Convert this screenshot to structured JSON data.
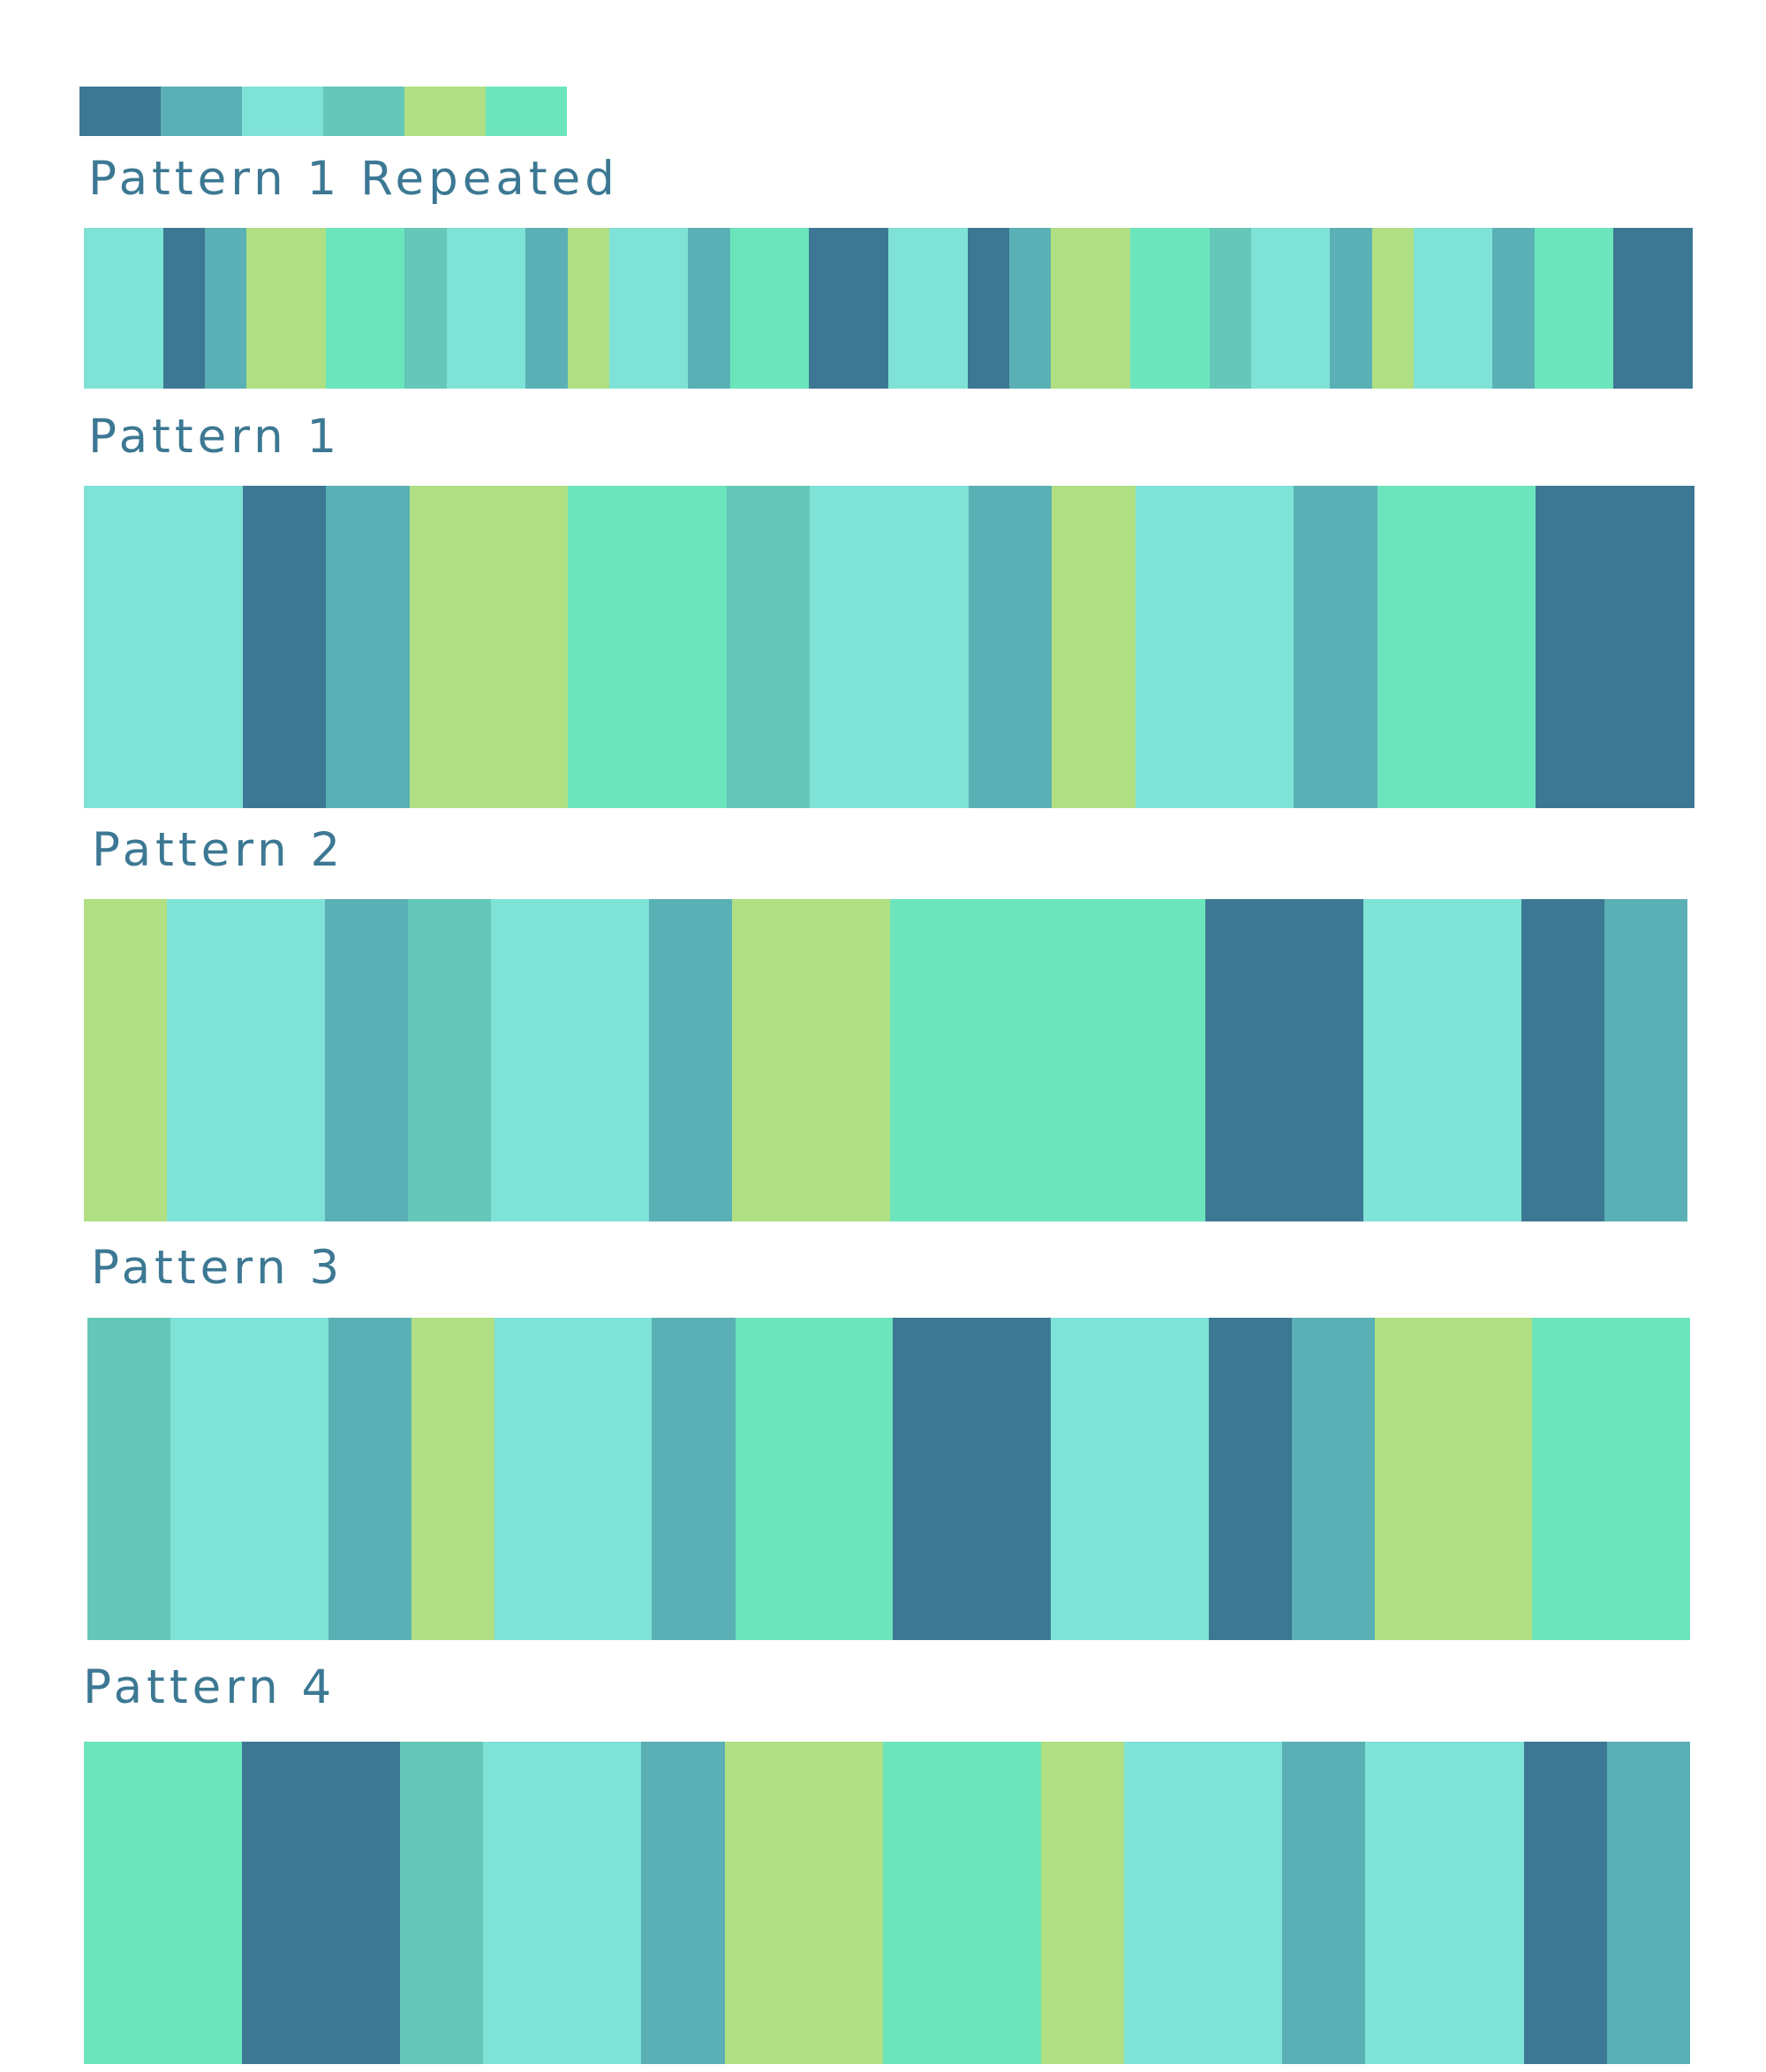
{
  "palette": {
    "colors": [
      "#3c7893",
      "#5ab0b5",
      "#7fe2d6",
      "#64c7b7",
      "#b0e083",
      "#6ce5bd"
    ]
  },
  "patterns": [
    {
      "title": "Pattern 1 Repeated",
      "stripes": [
        {
          "color": "#7fe2d6",
          "weight": 1.9
        },
        {
          "color": "#3c7893",
          "weight": 1.0
        },
        {
          "color": "#5ab0b5",
          "weight": 1.0
        },
        {
          "color": "#b0e083",
          "weight": 1.9
        },
        {
          "color": "#6ce5bd",
          "weight": 1.9
        },
        {
          "color": "#64c7b7",
          "weight": 1.0
        },
        {
          "color": "#7fe2d6",
          "weight": 1.9
        },
        {
          "color": "#5ab0b5",
          "weight": 1.0
        },
        {
          "color": "#b0e083",
          "weight": 1.0
        },
        {
          "color": "#7fe2d6",
          "weight": 1.9
        },
        {
          "color": "#5ab0b5",
          "weight": 1.0
        },
        {
          "color": "#6ce5bd",
          "weight": 1.9
        },
        {
          "color": "#3c7893",
          "weight": 1.9
        },
        {
          "color": "#7fe2d6",
          "weight": 1.9
        },
        {
          "color": "#3c7893",
          "weight": 1.0
        },
        {
          "color": "#5ab0b5",
          "weight": 1.0
        },
        {
          "color": "#b0e083",
          "weight": 1.9
        },
        {
          "color": "#6ce5bd",
          "weight": 1.9
        },
        {
          "color": "#64c7b7",
          "weight": 1.0
        },
        {
          "color": "#7fe2d6",
          "weight": 1.9
        },
        {
          "color": "#5ab0b5",
          "weight": 1.0
        },
        {
          "color": "#b0e083",
          "weight": 1.0
        },
        {
          "color": "#7fe2d6",
          "weight": 1.9
        },
        {
          "color": "#5ab0b5",
          "weight": 1.0
        },
        {
          "color": "#6ce5bd",
          "weight": 1.9
        },
        {
          "color": "#3c7893",
          "weight": 1.9
        }
      ]
    },
    {
      "title": "Pattern 1",
      "stripes": [
        {
          "color": "#7fe2d6",
          "weight": 1.9
        },
        {
          "color": "#3c7893",
          "weight": 1.0
        },
        {
          "color": "#5ab0b5",
          "weight": 1.0
        },
        {
          "color": "#b0e083",
          "weight": 1.9
        },
        {
          "color": "#6ce5bd",
          "weight": 1.9
        },
        {
          "color": "#64c7b7",
          "weight": 1.0
        },
        {
          "color": "#7fe2d6",
          "weight": 1.9
        },
        {
          "color": "#5ab0b5",
          "weight": 1.0
        },
        {
          "color": "#b0e083",
          "weight": 1.0
        },
        {
          "color": "#7fe2d6",
          "weight": 1.9
        },
        {
          "color": "#5ab0b5",
          "weight": 1.0
        },
        {
          "color": "#6ce5bd",
          "weight": 1.9
        },
        {
          "color": "#3c7893",
          "weight": 1.9
        }
      ]
    },
    {
      "title": "Pattern 2",
      "stripes": [
        {
          "color": "#b0e083",
          "weight": 1.0
        },
        {
          "color": "#7fe2d6",
          "weight": 1.9
        },
        {
          "color": "#5ab0b5",
          "weight": 1.0
        },
        {
          "color": "#64c7b7",
          "weight": 1.0
        },
        {
          "color": "#7fe2d6",
          "weight": 1.9
        },
        {
          "color": "#5ab0b5",
          "weight": 1.0
        },
        {
          "color": "#b0e083",
          "weight": 1.9
        },
        {
          "color": "#6ce5bd",
          "weight": 3.8
        },
        {
          "color": "#3c7893",
          "weight": 1.9
        },
        {
          "color": "#7fe2d6",
          "weight": 1.9
        },
        {
          "color": "#3c7893",
          "weight": 1.0
        },
        {
          "color": "#5ab0b5",
          "weight": 1.0
        }
      ]
    },
    {
      "title": "Pattern 3",
      "stripes": [
        {
          "color": "#64c7b7",
          "weight": 1.0
        },
        {
          "color": "#7fe2d6",
          "weight": 1.9
        },
        {
          "color": "#5ab0b5",
          "weight": 1.0
        },
        {
          "color": "#b0e083",
          "weight": 1.0
        },
        {
          "color": "#7fe2d6",
          "weight": 1.9
        },
        {
          "color": "#5ab0b5",
          "weight": 1.0
        },
        {
          "color": "#6ce5bd",
          "weight": 1.9
        },
        {
          "color": "#3c7893",
          "weight": 1.9
        },
        {
          "color": "#7fe2d6",
          "weight": 1.9
        },
        {
          "color": "#3c7893",
          "weight": 1.0
        },
        {
          "color": "#5ab0b5",
          "weight": 1.0
        },
        {
          "color": "#b0e083",
          "weight": 1.9
        },
        {
          "color": "#6ce5bd",
          "weight": 1.9
        }
      ]
    },
    {
      "title": "Pattern 4",
      "stripes": [
        {
          "color": "#6ce5bd",
          "weight": 1.9
        },
        {
          "color": "#3c7893",
          "weight": 1.9
        },
        {
          "color": "#64c7b7",
          "weight": 1.0
        },
        {
          "color": "#7fe2d6",
          "weight": 1.9
        },
        {
          "color": "#5ab0b5",
          "weight": 1.0
        },
        {
          "color": "#b0e083",
          "weight": 1.9
        },
        {
          "color": "#6ce5bd",
          "weight": 1.9
        },
        {
          "color": "#b0e083",
          "weight": 1.0
        },
        {
          "color": "#7fe2d6",
          "weight": 1.9
        },
        {
          "color": "#5ab0b5",
          "weight": 1.0
        },
        {
          "color": "#7fe2d6",
          "weight": 1.9
        },
        {
          "color": "#3c7893",
          "weight": 1.0
        },
        {
          "color": "#5ab0b5",
          "weight": 1.0
        }
      ]
    }
  ]
}
